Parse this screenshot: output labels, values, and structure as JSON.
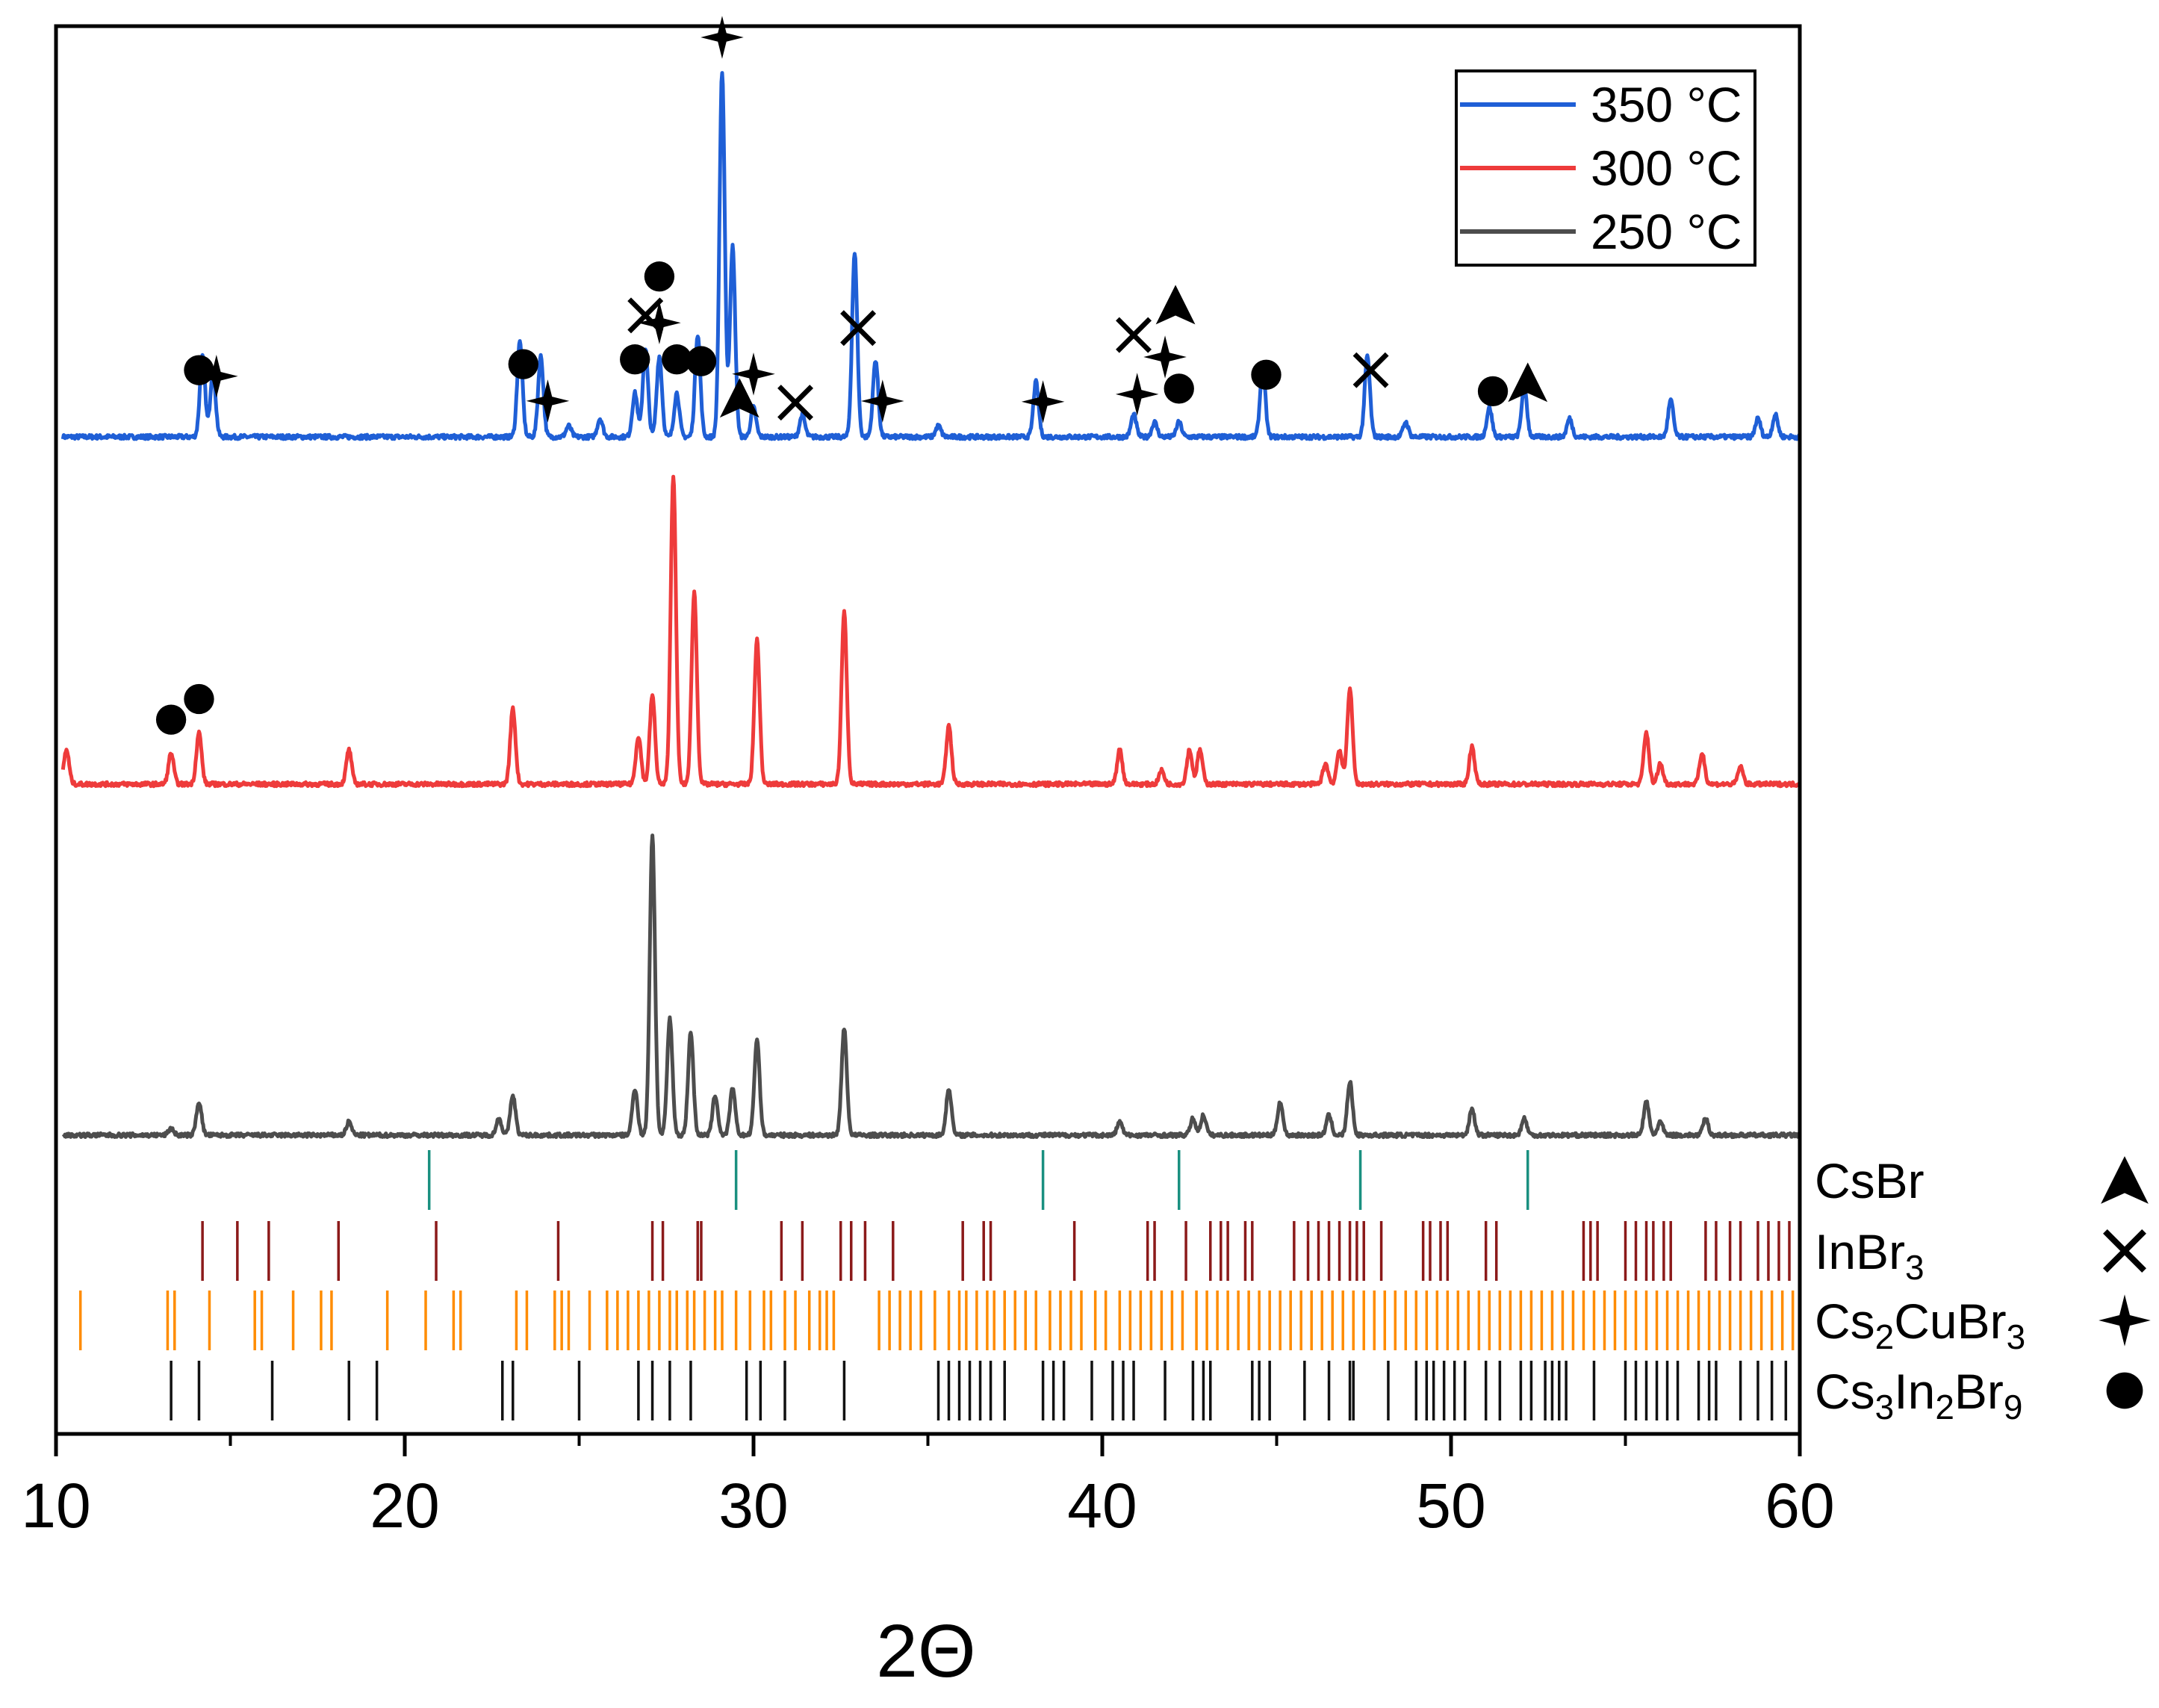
{
  "chart_data": {
    "type": "line",
    "title": "",
    "xlabel": "2Θ",
    "ylabel": "",
    "xlim": [
      10,
      60
    ],
    "xticks": [
      "10",
      "20",
      "30",
      "40",
      "50",
      "60"
    ],
    "legend_position": "top-right",
    "series": [
      {
        "name": "350 °C",
        "color": "#1f5fd6",
        "peaks": [
          [
            14.2,
            0.22
          ],
          [
            14.5,
            0.18
          ],
          [
            23.3,
            0.26
          ],
          [
            23.9,
            0.22
          ],
          [
            24.7,
            0.03
          ],
          [
            25.6,
            0.05
          ],
          [
            26.6,
            0.12
          ],
          [
            26.9,
            0.24
          ],
          [
            27.3,
            0.22
          ],
          [
            27.8,
            0.12
          ],
          [
            28.4,
            0.28
          ],
          [
            29.1,
            1.0
          ],
          [
            29.4,
            0.52
          ],
          [
            30.0,
            0.08
          ],
          [
            31.4,
            0.06
          ],
          [
            32.9,
            0.5
          ],
          [
            33.5,
            0.21
          ],
          [
            35.3,
            0.03
          ],
          [
            38.1,
            0.15
          ],
          [
            40.9,
            0.06
          ],
          [
            41.5,
            0.04
          ],
          [
            42.2,
            0.04
          ],
          [
            44.6,
            0.19
          ],
          [
            47.6,
            0.22
          ],
          [
            48.7,
            0.04
          ],
          [
            51.1,
            0.08
          ],
          [
            52.1,
            0.14
          ],
          [
            53.4,
            0.05
          ],
          [
            56.3,
            0.1
          ],
          [
            58.8,
            0.05
          ],
          [
            59.3,
            0.06
          ]
        ],
        "markers": [
          {
            "x": 14.1,
            "phase": "Cs3In2Br9"
          },
          {
            "x": 14.6,
            "phase": "Cs2CuBr3"
          },
          {
            "x": 23.4,
            "phase": "Cs3In2Br9"
          },
          {
            "x": 24.1,
            "phase": "Cs2CuBr3"
          },
          {
            "x": 26.6,
            "phase": "Cs3In2Br9"
          },
          {
            "x": 26.9,
            "phase": "InBr3"
          },
          {
            "x": 27.3,
            "phase": "Cs2CuBr3"
          },
          {
            "x": 27.3,
            "phase": "Cs3In2Br9"
          },
          {
            "x": 27.8,
            "phase": "Cs3In2Br9"
          },
          {
            "x": 28.5,
            "phase": "Cs3In2Br9"
          },
          {
            "x": 29.1,
            "phase": "Cs2CuBr3"
          },
          {
            "x": 29.6,
            "phase": "CsBr"
          },
          {
            "x": 30.0,
            "phase": "Cs2CuBr3"
          },
          {
            "x": 31.2,
            "phase": "InBr3"
          },
          {
            "x": 33.0,
            "phase": "InBr3"
          },
          {
            "x": 33.7,
            "phase": "Cs2CuBr3"
          },
          {
            "x": 38.3,
            "phase": "Cs2CuBr3"
          },
          {
            "x": 41.0,
            "phase": "Cs2CuBr3"
          },
          {
            "x": 40.9,
            "phase": "InBr3"
          },
          {
            "x": 42.2,
            "phase": "Cs3In2Br9"
          },
          {
            "x": 41.8,
            "phase": "Cs2CuBr3"
          },
          {
            "x": 42.1,
            "phase": "CsBr"
          },
          {
            "x": 44.7,
            "phase": "Cs3In2Br9"
          },
          {
            "x": 47.7,
            "phase": "InBr3"
          },
          {
            "x": 51.2,
            "phase": "Cs3In2Br9"
          },
          {
            "x": 52.2,
            "phase": "CsBr"
          }
        ]
      },
      {
        "name": "300 °C",
        "color": "#ee3b3b",
        "peaks": [
          [
            10.3,
            0.1
          ],
          [
            13.3,
            0.09
          ],
          [
            14.1,
            0.15
          ],
          [
            18.4,
            0.1
          ],
          [
            23.1,
            0.22
          ],
          [
            26.7,
            0.14
          ],
          [
            27.1,
            0.26
          ],
          [
            27.7,
            0.9
          ],
          [
            28.3,
            0.56
          ],
          [
            30.1,
            0.42
          ],
          [
            32.6,
            0.5
          ],
          [
            35.6,
            0.17
          ],
          [
            40.5,
            0.1
          ],
          [
            41.7,
            0.04
          ],
          [
            42.5,
            0.1
          ],
          [
            42.8,
            0.1
          ],
          [
            46.4,
            0.06
          ],
          [
            46.8,
            0.1
          ],
          [
            47.1,
            0.28
          ],
          [
            50.6,
            0.11
          ],
          [
            55.6,
            0.15
          ],
          [
            56.0,
            0.06
          ],
          [
            57.2,
            0.09
          ],
          [
            58.3,
            0.05
          ]
        ],
        "markers": [
          {
            "x": 13.3,
            "phase": "Cs3In2Br9"
          },
          {
            "x": 14.1,
            "phase": "Cs3In2Br9"
          }
        ]
      },
      {
        "name": "250 °C",
        "color": "#4d4d4d",
        "peaks": [
          [
            13.3,
            0.02
          ],
          [
            14.1,
            0.1
          ],
          [
            18.4,
            0.04
          ],
          [
            22.7,
            0.05
          ],
          [
            23.1,
            0.12
          ],
          [
            26.6,
            0.14
          ],
          [
            27.1,
            0.9
          ],
          [
            27.6,
            0.35
          ],
          [
            28.2,
            0.31
          ],
          [
            28.9,
            0.12
          ],
          [
            29.4,
            0.14
          ],
          [
            30.1,
            0.29
          ],
          [
            32.6,
            0.32
          ],
          [
            35.6,
            0.14
          ],
          [
            40.5,
            0.04
          ],
          [
            42.6,
            0.05
          ],
          [
            42.9,
            0.06
          ],
          [
            45.1,
            0.1
          ],
          [
            46.5,
            0.06
          ],
          [
            47.1,
            0.16
          ],
          [
            50.6,
            0.08
          ],
          [
            52.1,
            0.05
          ],
          [
            55.6,
            0.1
          ],
          [
            56.0,
            0.04
          ],
          [
            57.3,
            0.05
          ]
        ],
        "markers": []
      }
    ],
    "reference_phases": [
      {
        "name": "CsBr",
        "label_parts": [
          "CsBr"
        ],
        "color": "#1a9080",
        "symbol": "triangle",
        "lines": [
          20.7,
          29.5,
          38.3,
          42.2,
          47.4,
          52.2
        ]
      },
      {
        "name": "InBr3",
        "label_parts": [
          "InBr",
          "3"
        ],
        "color": "#8b1a1a",
        "symbol": "cross",
        "lines": [
          14.2,
          15.2,
          16.1,
          18.1,
          20.9,
          24.4,
          27.1,
          27.4,
          28.4,
          28.5,
          30.8,
          31.4,
          32.5,
          32.8,
          33.2,
          34.0,
          36.0,
          36.6,
          36.8,
          39.2,
          41.3,
          41.5,
          42.4,
          43.1,
          43.4,
          43.6,
          44.1,
          44.3,
          45.5,
          45.9,
          46.2,
          46.5,
          46.8,
          47.1,
          47.3,
          47.5,
          48.0,
          49.2,
          49.4,
          49.7,
          49.9,
          51.0,
          51.3,
          53.8,
          54.0,
          54.2,
          55.0,
          55.3,
          55.6,
          55.8,
          56.1,
          56.3,
          57.3,
          57.6,
          58.0,
          58.3,
          58.8,
          59.1,
          59.4,
          59.7
        ]
      },
      {
        "name": "Cs2CuBr3",
        "label_parts": [
          "Cs",
          "2",
          "CuBr",
          "3"
        ],
        "color": "#ff8c00",
        "symbol": "star",
        "lines": [
          10.7,
          13.2,
          13.4,
          14.4,
          15.7,
          15.9,
          16.8,
          17.6,
          17.9,
          19.5,
          20.6,
          21.4,
          21.6,
          23.2,
          23.5,
          24.3,
          24.5,
          24.7,
          25.3,
          25.8,
          26.1,
          26.4,
          26.7,
          27.0,
          27.3,
          27.6,
          27.8,
          28.1,
          28.3,
          28.6,
          28.9,
          29.1,
          29.5,
          29.9,
          30.3,
          30.5,
          30.9,
          31.2,
          31.6,
          31.9,
          32.1,
          32.3,
          33.6,
          33.9,
          34.2,
          34.5,
          34.8,
          35.2,
          35.6,
          35.9,
          36.1,
          36.4,
          36.7,
          36.9,
          37.2,
          37.5,
          37.8,
          38.1,
          38.5,
          38.8,
          39.1,
          39.4,
          39.8,
          40.1,
          40.5,
          40.8,
          41.1,
          41.4,
          41.7,
          42.0,
          42.3,
          42.7,
          43.0,
          43.3,
          43.6,
          43.9,
          44.2,
          44.5,
          44.8,
          45.1,
          45.4,
          45.7,
          46.0,
          46.3,
          46.6,
          46.9,
          47.2,
          47.5,
          47.8,
          48.1,
          48.4,
          48.7,
          49.0,
          49.3,
          49.6,
          49.9,
          50.2,
          50.5,
          50.8,
          51.1,
          51.4,
          51.7,
          52.0,
          52.3,
          52.6,
          52.9,
          53.2,
          53.5,
          53.8,
          54.1,
          54.4,
          54.7,
          55.0,
          55.3,
          55.6,
          55.9,
          56.2,
          56.5,
          56.8,
          57.1,
          57.4,
          57.7,
          58.0,
          58.3,
          58.6,
          58.9,
          59.2,
          59.5,
          59.8
        ]
      },
      {
        "name": "Cs3In2Br9",
        "label_parts": [
          "Cs",
          "3",
          "In",
          "2",
          "Br",
          "9"
        ],
        "color": "#111111",
        "symbol": "dot",
        "lines": [
          13.3,
          14.1,
          16.2,
          18.4,
          19.2,
          22.8,
          23.1,
          25.0,
          26.7,
          27.1,
          27.6,
          28.2,
          29.8,
          30.2,
          30.9,
          32.6,
          35.3,
          35.6,
          35.9,
          36.2,
          36.5,
          36.8,
          37.2,
          38.3,
          38.6,
          38.9,
          39.7,
          40.3,
          40.6,
          40.9,
          41.8,
          42.6,
          42.9,
          43.1,
          44.3,
          44.5,
          44.8,
          45.8,
          46.5,
          47.1,
          47.2,
          48.2,
          49.0,
          49.3,
          49.5,
          49.8,
          50.1,
          50.4,
          51.0,
          51.4,
          52.0,
          52.3,
          52.7,
          52.9,
          53.1,
          53.3,
          54.1,
          55.0,
          55.3,
          55.6,
          55.9,
          56.2,
          56.5,
          57.1,
          57.4,
          57.6,
          58.3,
          58.8,
          59.2,
          59.6
        ]
      }
    ]
  }
}
